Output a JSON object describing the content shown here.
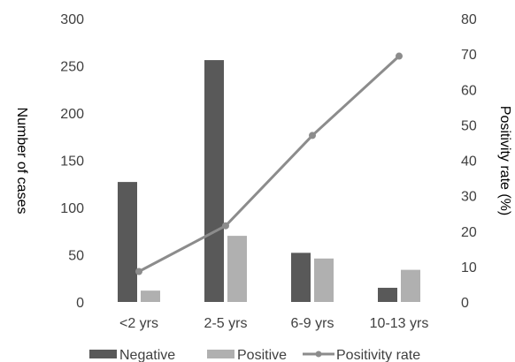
{
  "chart_data": {
    "type": "bar",
    "title": "",
    "categories": [
      "<2 yrs",
      "2-5 yrs",
      "6-9 yrs",
      "10-13 yrs"
    ],
    "series": [
      {
        "name": "Negative",
        "kind": "bar",
        "axis": "left",
        "color": "#595959",
        "values": [
          127,
          256,
          52,
          15
        ]
      },
      {
        "name": "Positive",
        "kind": "bar",
        "axis": "left",
        "color": "#b0b0b0",
        "values": [
          12,
          70,
          46,
          34
        ]
      },
      {
        "name": "Positivity rate",
        "kind": "line",
        "axis": "right",
        "color": "#8c8c8c",
        "values": [
          8.6,
          21.5,
          47,
          69.4
        ]
      }
    ],
    "ylabel": "Number of cases",
    "ylabel_right": "Positivity rate (%)",
    "ylim": [
      0,
      300
    ],
    "ylim_right": [
      0,
      80
    ],
    "yticks": [
      "0",
      "50",
      "100",
      "150",
      "200",
      "250",
      "300"
    ],
    "yticks_right": [
      "0",
      "10",
      "20",
      "30",
      "40",
      "50",
      "60",
      "70",
      "80"
    ],
    "grid": false,
    "legend_position": "bottom"
  }
}
